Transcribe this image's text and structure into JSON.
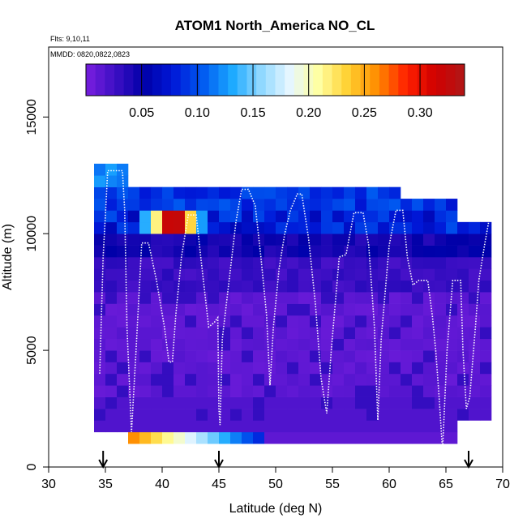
{
  "chart_data": {
    "type": "heatmap",
    "title": "ATOM1 North_America NO_CL",
    "subtitle_flights": "Flts: 9,10,11",
    "subtitle_dates": "MMDD: 0820,0822,0823",
    "xlabel": "Latitude (deg N)",
    "ylabel": "Altitude (m)",
    "xlim": [
      30,
      70
    ],
    "ylim": [
      0,
      18000
    ],
    "xticks": [
      30,
      35,
      40,
      45,
      50,
      55,
      60,
      65,
      70
    ],
    "yticks": [
      0,
      5000,
      10000,
      15000
    ],
    "grid": false,
    "colorbar": {
      "placement": "top-inside",
      "range": [
        0,
        0.34
      ],
      "ticks": [
        0.05,
        0.1,
        0.15,
        0.2,
        0.25,
        0.3
      ],
      "tick_labels": [
        "0.05",
        "0.10",
        "0.15",
        "0.20",
        "0.25",
        "0.30"
      ],
      "colors": [
        "#7a1fe0",
        "#3d0fc4",
        "#0000a8",
        "#0018d8",
        "#0058f0",
        "#1aa8ff",
        "#8fd8ff",
        "#e6f6ff",
        "#ffffa0",
        "#ffd030",
        "#ff8c00",
        "#ff2000",
        "#d00000",
        "#b01818"
      ]
    },
    "lat_bin_width": 1,
    "alt_bin_width": 500,
    "profiles": [
      {
        "lat_min": 34,
        "lat_max": 37,
        "alt_min": 1500,
        "alt_max": 13000
      },
      {
        "lat_min": 37,
        "lat_max": 47,
        "alt_min": 1000,
        "alt_max": 12000
      },
      {
        "lat_min": 47,
        "lat_max": 61,
        "alt_min": 1000,
        "alt_max": 12000
      },
      {
        "lat_min": 61,
        "lat_max": 66,
        "alt_min": 1000,
        "alt_max": 11500
      },
      {
        "lat_min": 66,
        "lat_max": 69,
        "alt_min": 2000,
        "alt_max": 10500
      }
    ],
    "features": [
      {
        "desc": "upper troposphere plume",
        "lat_min": 38,
        "lat_max": 44,
        "alt_min": 10000,
        "alt_max": 11000,
        "peak_value": 0.33
      },
      {
        "desc": "boundary layer enhancement",
        "lat_min": 37,
        "lat_max": 49,
        "alt_min": 1000,
        "alt_max": 1500,
        "value_range": [
          0.07,
          0.26
        ]
      }
    ],
    "flight_track": [
      [
        34.5,
        4000
      ],
      [
        34.8,
        9000
      ],
      [
        35.0,
        10800
      ],
      [
        35.2,
        12700
      ],
      [
        36.5,
        12700
      ],
      [
        36.7,
        11000
      ],
      [
        36.9,
        6000
      ],
      [
        37.3,
        1500
      ],
      [
        37.7,
        5000
      ],
      [
        38.2,
        9600
      ],
      [
        38.8,
        9600
      ],
      [
        39.5,
        8000
      ],
      [
        40.2,
        6000
      ],
      [
        40.6,
        4500
      ],
      [
        40.9,
        4500
      ],
      [
        41.2,
        6500
      ],
      [
        41.7,
        9000
      ],
      [
        42.3,
        10800
      ],
      [
        43.0,
        10800
      ],
      [
        43.4,
        9000
      ],
      [
        44.1,
        6000
      ],
      [
        44.6,
        6200
      ],
      [
        44.9,
        6400
      ],
      [
        45.0,
        2500
      ],
      [
        45.1,
        1800
      ],
      [
        45.3,
        5500
      ],
      [
        45.9,
        8000
      ],
      [
        46.5,
        10500
      ],
      [
        47.0,
        11900
      ],
      [
        47.6,
        11900
      ],
      [
        48.2,
        11200
      ],
      [
        48.7,
        9000
      ],
      [
        49.2,
        6500
      ],
      [
        49.5,
        3500
      ],
      [
        49.8,
        6000
      ],
      [
        50.3,
        8500
      ],
      [
        50.8,
        10000
      ],
      [
        51.3,
        11000
      ],
      [
        51.9,
        11700
      ],
      [
        52.3,
        11700
      ],
      [
        52.9,
        9800
      ],
      [
        53.5,
        7000
      ],
      [
        54.0,
        3800
      ],
      [
        54.5,
        2300
      ],
      [
        54.9,
        5000
      ],
      [
        55.6,
        9000
      ],
      [
        56.2,
        9100
      ],
      [
        56.9,
        10900
      ],
      [
        57.7,
        10900
      ],
      [
        58.2,
        9500
      ],
      [
        58.7,
        6000
      ],
      [
        59.0,
        2000
      ],
      [
        59.3,
        5500
      ],
      [
        60.0,
        9500
      ],
      [
        60.6,
        11000
      ],
      [
        61.2,
        11000
      ],
      [
        61.6,
        9000
      ],
      [
        62.1,
        7800
      ],
      [
        62.6,
        8000
      ],
      [
        63.4,
        8000
      ],
      [
        63.8,
        6500
      ],
      [
        64.1,
        5000
      ],
      [
        64.4,
        3000
      ],
      [
        64.7,
        700
      ],
      [
        65.1,
        5000
      ],
      [
        65.6,
        8000
      ],
      [
        66.3,
        8000
      ],
      [
        66.5,
        5000
      ],
      [
        66.8,
        2500
      ],
      [
        67.1,
        3000
      ],
      [
        67.6,
        6000
      ],
      [
        67.9,
        8000
      ],
      [
        68.4,
        9500
      ],
      [
        68.8,
        10600
      ],
      [
        69.3,
        11000
      ],
      [
        69.8,
        11200
      ]
    ],
    "flight_markers_lat": [
      34.8,
      45.0,
      67.0
    ]
  }
}
